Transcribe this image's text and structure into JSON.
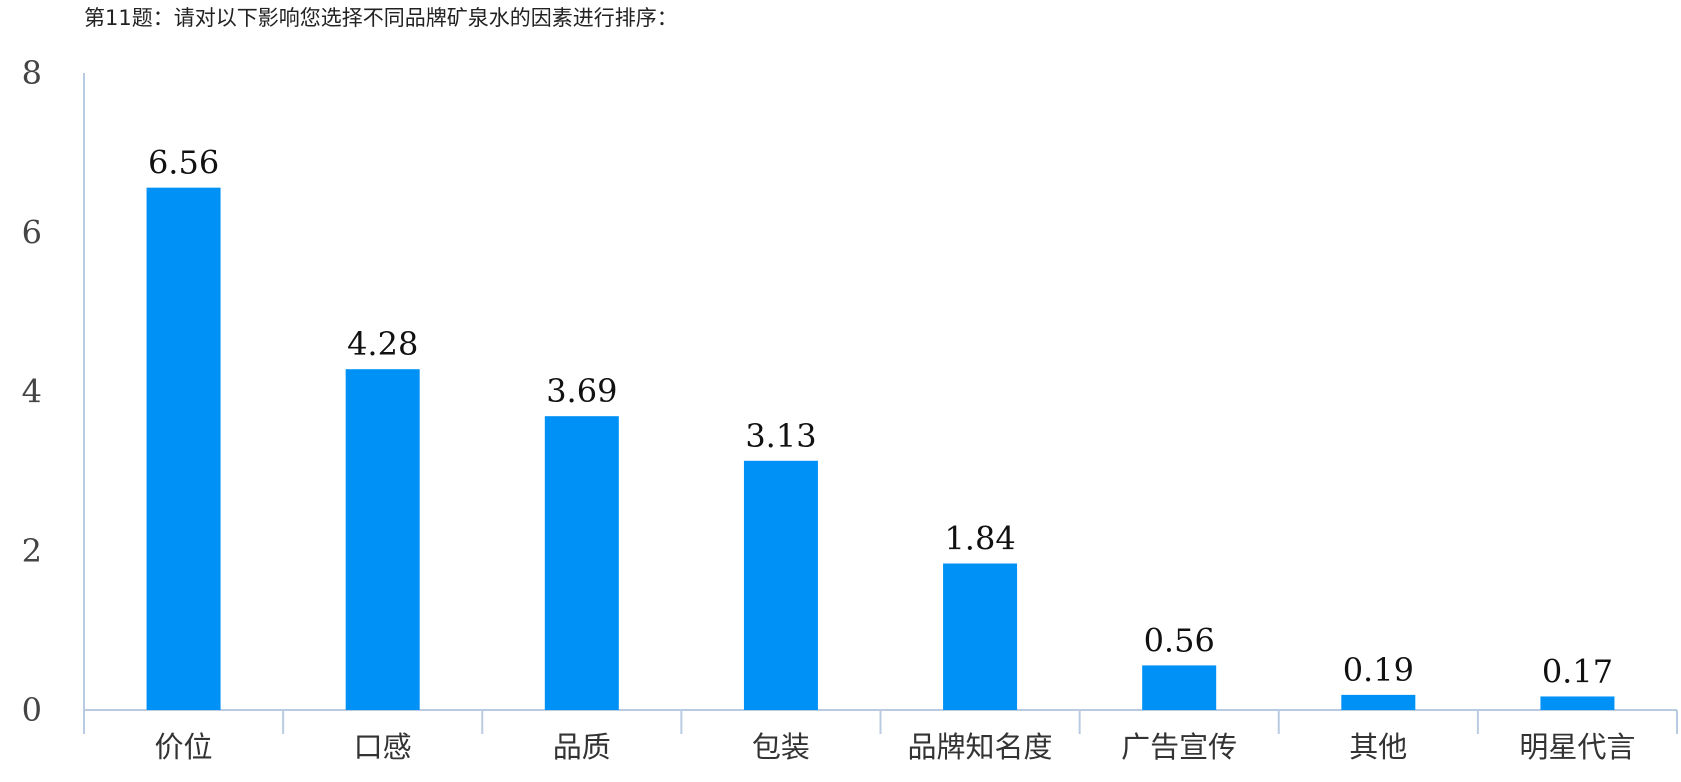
{
  "question": {
    "title": "第11题：请对以下影响您选择不同品牌矿泉水的因素进行排序："
  },
  "chart_data": {
    "type": "bar",
    "categories": [
      "价位",
      "口感",
      "品质",
      "包装",
      "品牌知名度",
      "广告宣传",
      "其他",
      "明星代言"
    ],
    "values": [
      6.56,
      4.28,
      3.69,
      3.13,
      1.84,
      0.56,
      0.19,
      0.17
    ],
    "value_labels": [
      "6.56",
      "4.28",
      "3.69",
      "3.13",
      "1.84",
      "0.56",
      "0.19",
      "0.17"
    ],
    "title": "",
    "xlabel": "",
    "ylabel": "",
    "ylim": [
      0,
      8
    ],
    "yticks": [
      0,
      2,
      4,
      6,
      8
    ],
    "grid": false,
    "legend": "none",
    "bar_color": "#0091f7",
    "axis_color": "#b8cbe0"
  }
}
